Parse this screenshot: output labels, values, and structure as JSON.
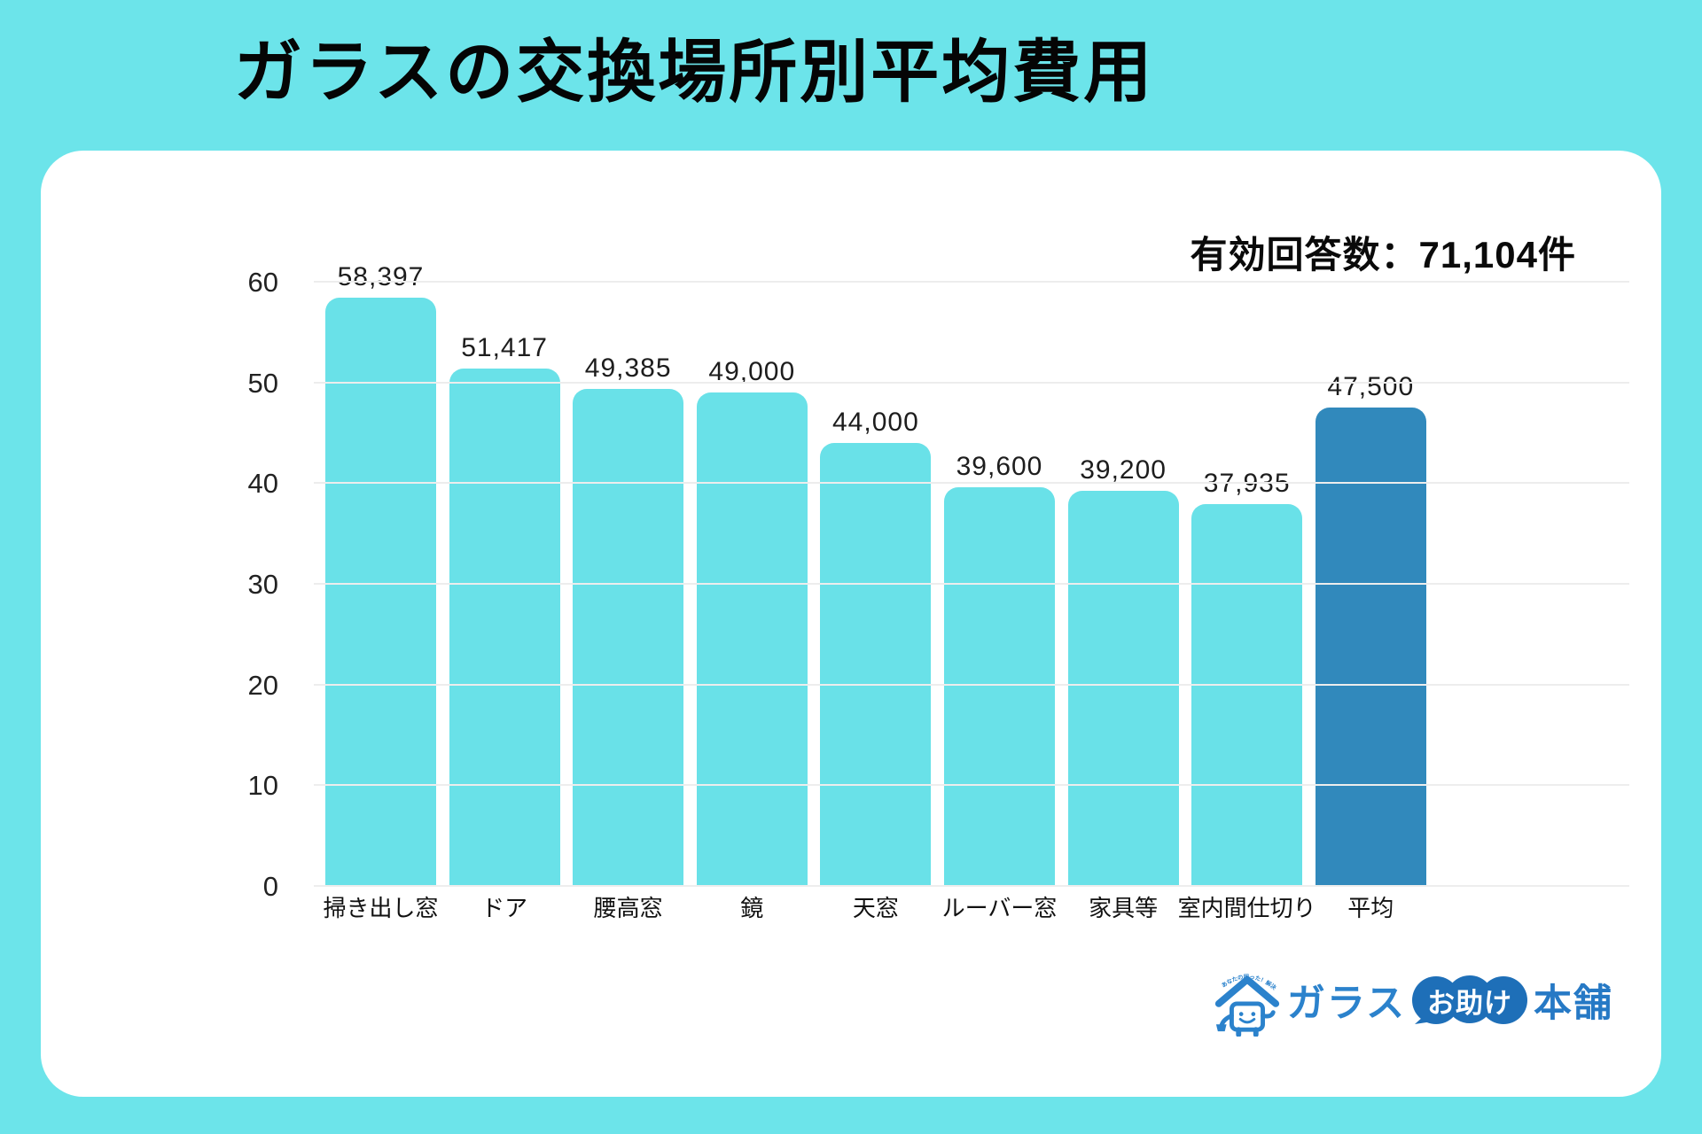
{
  "page": {
    "title": "ガラスの交換場所別平均費用",
    "background_color": "#6CE4EA",
    "card_color": "#FFFFFF"
  },
  "survey_note": "有効回答数：71,104件",
  "chart_data": {
    "type": "bar",
    "title": "ガラスの交換場所別平均費用",
    "categories": [
      "掃き出し窓",
      "ドア",
      "腰高窓",
      "鏡",
      "天窓",
      "ルーバー窓",
      "家具等",
      "室内間仕切り",
      "平均"
    ],
    "values": [
      58397,
      51417,
      49385,
      49000,
      44000,
      39600,
      39200,
      37935,
      47500
    ],
    "value_labels": [
      "58,397",
      "51,417",
      "49,385",
      "49,000",
      "44,000",
      "39,600",
      "39,200",
      "37,935",
      "47,500"
    ],
    "unit_divisor": 1000,
    "ylim": [
      0,
      60
    ],
    "yticks": [
      0,
      10,
      20,
      30,
      40,
      50,
      60
    ],
    "grid": true,
    "legend": "none",
    "bar_color": "#69E1E8",
    "highlight_index": 8,
    "highlight_color": "#3189BC"
  },
  "logo": {
    "tagline": "あなたの困った！解決します",
    "brand_1": "ガラス",
    "brand_2": "お助け",
    "brand_3": "本舗",
    "color_text": "#2B82CC",
    "color_bubble": "#1E6FB8"
  }
}
